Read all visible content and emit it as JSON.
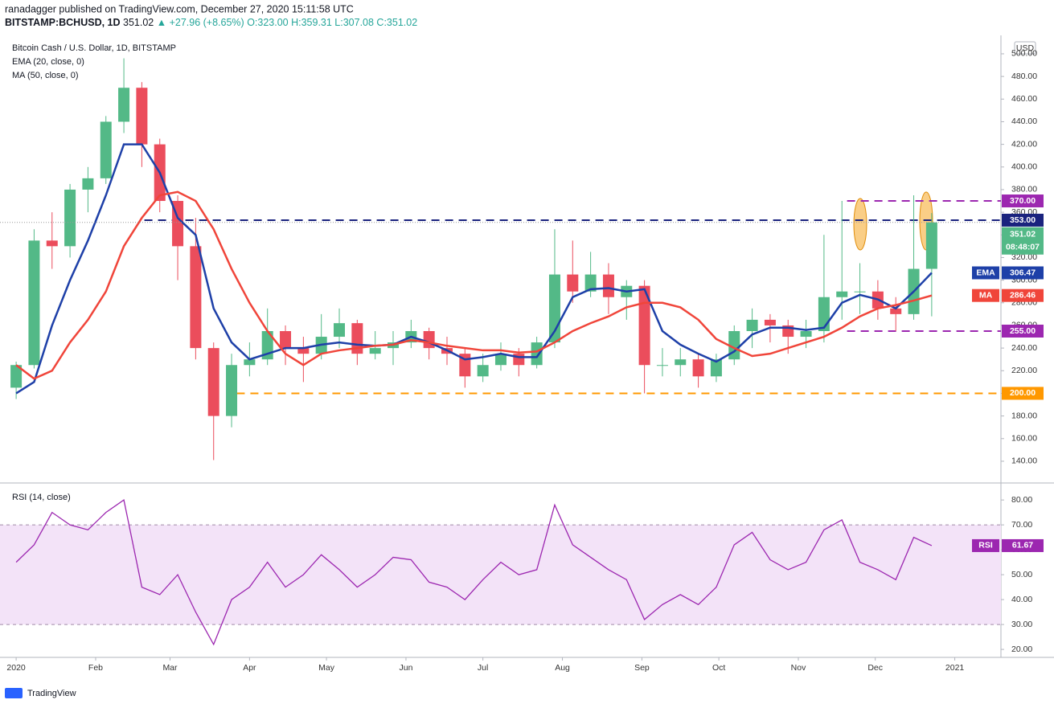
{
  "header": {
    "published": "ranadagger published on TradingView.com, December 27, 2020 15:11:58 UTC",
    "symbol": "BITSTAMP:BCHUSD, 1D",
    "last": "351.02",
    "change": "▲ +27.96 (+8.65%)",
    "ohlc": "O:323.00 H:359.31 L:307.08 C:351.02"
  },
  "footer": {
    "brand": "TradingView"
  },
  "chart_data": [
    {
      "type": "candlestick",
      "title": "Bitcoin Cash / U.S. Dollar, 1D, BITSTAMP",
      "axis_unit": "USD",
      "countdown": "08:48:07",
      "up_color": "#53b987",
      "down_color": "#eb4d5c",
      "x": [
        0,
        7,
        14,
        21,
        28,
        35,
        42,
        49,
        56,
        63,
        70,
        77,
        84,
        91,
        98,
        105,
        112,
        119,
        126,
        133,
        140,
        147,
        154,
        161,
        168,
        175,
        182,
        189,
        196,
        203,
        210,
        217,
        224,
        231,
        238,
        245,
        252,
        259,
        266,
        273,
        280,
        287,
        294,
        301,
        308,
        315,
        322,
        329,
        336,
        343,
        350,
        357
      ],
      "open": [
        205,
        225,
        335,
        330,
        380,
        390,
        440,
        470,
        420,
        370,
        330,
        240,
        180,
        225,
        230,
        255,
        240,
        235,
        250,
        262,
        235,
        240,
        245,
        255,
        240,
        235,
        215,
        225,
        235,
        225,
        245,
        305,
        290,
        305,
        285,
        295,
        225,
        225,
        230,
        215,
        230,
        255,
        265,
        260,
        250,
        255,
        285,
        290,
        290,
        275,
        270,
        310
      ],
      "high": [
        228,
        345,
        360,
        385,
        400,
        445,
        496,
        475,
        425,
        375,
        355,
        245,
        235,
        245,
        275,
        260,
        250,
        270,
        275,
        265,
        255,
        255,
        265,
        258,
        250,
        240,
        235,
        245,
        240,
        250,
        345,
        335,
        325,
        315,
        300,
        300,
        240,
        240,
        235,
        235,
        260,
        275,
        270,
        265,
        265,
        340,
        370,
        315,
        300,
        285,
        375,
        359.31
      ],
      "low": [
        195,
        222,
        310,
        320,
        360,
        385,
        430,
        400,
        360,
        300,
        230,
        141,
        170,
        215,
        225,
        225,
        210,
        230,
        240,
        225,
        230,
        225,
        240,
        230,
        225,
        205,
        210,
        220,
        215,
        222,
        240,
        280,
        285,
        270,
        265,
        200,
        215,
        215,
        205,
        210,
        225,
        240,
        245,
        235,
        240,
        245,
        265,
        270,
        265,
        255,
        265,
        268
      ],
      "close": [
        225,
        335,
        330,
        380,
        390,
        440,
        470,
        420,
        370,
        330,
        240,
        180,
        225,
        230,
        255,
        240,
        235,
        250,
        262,
        235,
        240,
        245,
        255,
        240,
        235,
        215,
        225,
        235,
        225,
        245,
        305,
        290,
        305,
        285,
        295,
        225,
        225,
        230,
        215,
        230,
        255,
        265,
        260,
        250,
        255,
        285,
        290,
        290,
        275,
        270,
        310,
        351.02
      ],
      "series": [
        {
          "name": "EMA (20, close, 0)",
          "tag": "EMA",
          "color": "#1e40a8",
          "values": [
            200,
            210,
            260,
            300,
            335,
            375,
            420,
            420,
            395,
            355,
            340,
            275,
            245,
            230,
            235,
            240,
            240,
            243,
            245,
            243,
            242,
            243,
            250,
            245,
            238,
            230,
            232,
            235,
            232,
            232,
            255,
            285,
            292,
            293,
            290,
            292,
            255,
            243,
            235,
            228,
            237,
            252,
            258,
            258,
            256,
            258,
            280,
            287,
            283,
            275,
            290,
            306.47
          ]
        },
        {
          "name": "MA (50, close, 0)",
          "tag": "MA",
          "color": "#f0453a",
          "values": [
            225,
            213,
            220,
            245,
            265,
            290,
            330,
            355,
            375,
            378,
            370,
            345,
            310,
            280,
            255,
            235,
            225,
            235,
            238,
            240,
            242,
            243,
            247,
            245,
            242,
            240,
            238,
            238,
            236,
            237,
            245,
            255,
            262,
            268,
            276,
            280,
            280,
            276,
            265,
            248,
            240,
            233,
            235,
            240,
            245,
            250,
            258,
            268,
            275,
            278,
            282,
            286.46
          ]
        }
      ],
      "levels": [
        {
          "value": 370,
          "label": "370.00",
          "color": "#9c27b0",
          "start": 324
        },
        {
          "value": 353,
          "label": "353.00",
          "color": "#1a237e",
          "start": 50
        },
        {
          "value": 255,
          "label": "255.00",
          "color": "#9c27b0",
          "start": 324
        },
        {
          "value": 200,
          "label": "200.00",
          "color": "#ff9800",
          "start": 86
        }
      ],
      "xlim": [
        -6.3,
        384
      ],
      "ylim": [
        121.5,
        516.3
      ],
      "xticks": [
        {
          "value": 0,
          "label": "2020"
        },
        {
          "value": 31,
          "label": "Feb"
        },
        {
          "value": 60,
          "label": "Mar"
        },
        {
          "value": 91,
          "label": "Apr"
        },
        {
          "value": 121,
          "label": "May"
        },
        {
          "value": 152,
          "label": "Jun"
        },
        {
          "value": 182,
          "label": "Jul"
        },
        {
          "value": 213,
          "label": "Aug"
        },
        {
          "value": 244,
          "label": "Sep"
        },
        {
          "value": 274,
          "label": "Oct"
        },
        {
          "value": 305,
          "label": "Nov"
        },
        {
          "value": 335,
          "label": "Dec"
        },
        {
          "value": 366,
          "label": "2021"
        }
      ],
      "yticks": [
        {
          "value": 140,
          "label": "140.00"
        },
        {
          "value": 160,
          "label": "160.00"
        },
        {
          "value": 180,
          "label": "180.00"
        },
        {
          "value": 200,
          "label": "200.00"
        },
        {
          "value": 220,
          "label": "220.00"
        },
        {
          "value": 240,
          "label": "240.00"
        },
        {
          "value": 260,
          "label": "260.00"
        },
        {
          "value": 280,
          "label": "280.00"
        },
        {
          "value": 300,
          "label": "300.00"
        },
        {
          "value": 320,
          "label": "320.00"
        },
        {
          "value": 340,
          "label": "340.00"
        },
        {
          "value": 360,
          "label": "360.00"
        },
        {
          "value": 380,
          "label": "380.00"
        },
        {
          "value": 400,
          "label": "400.00"
        },
        {
          "value": 420,
          "label": "420.00"
        },
        {
          "value": 440,
          "label": "440.00"
        },
        {
          "value": 460,
          "label": "460.00"
        },
        {
          "value": 480,
          "label": "480.00"
        },
        {
          "value": 500,
          "label": "500.00"
        }
      ]
    },
    {
      "type": "line",
      "title": "RSI (14, close)",
      "x": [
        0,
        7,
        14,
        21,
        28,
        35,
        42,
        49,
        56,
        63,
        70,
        77,
        84,
        91,
        98,
        105,
        112,
        119,
        126,
        133,
        140,
        147,
        154,
        161,
        168,
        175,
        182,
        189,
        196,
        203,
        210,
        217,
        224,
        231,
        238,
        245,
        252,
        259,
        266,
        273,
        280,
        287,
        294,
        301,
        308,
        315,
        322,
        329,
        336,
        343,
        350,
        357
      ],
      "series": [
        {
          "name": "RSI (14, close)",
          "tag": "RSI",
          "color": "#9c27b0",
          "values": [
            55,
            62,
            75,
            70,
            68,
            75,
            80,
            45,
            42,
            50,
            35,
            22,
            40,
            45,
            55,
            45,
            50,
            58,
            52,
            45,
            50,
            57,
            56,
            47,
            45,
            40,
            48,
            55,
            50,
            52,
            78,
            62,
            57,
            52,
            48,
            32,
            38,
            42,
            38,
            45,
            62,
            67,
            56,
            52,
            55,
            68,
            72,
            55,
            52,
            48,
            65,
            61.67
          ]
        }
      ],
      "band": [
        30,
        70
      ],
      "band_color": "#f3e3f8",
      "xlim": [
        -6.3,
        384
      ],
      "ylim": [
        16.8,
        86.5
      ],
      "yticks": [
        {
          "value": 20,
          "label": "20.00"
        },
        {
          "value": 30,
          "label": "30.00"
        },
        {
          "value": 40,
          "label": "40.00"
        },
        {
          "value": 50,
          "label": "50.00"
        },
        {
          "value": 60,
          "label": "60.00"
        },
        {
          "value": 70,
          "label": "70.00"
        },
        {
          "value": 80,
          "label": "80.00"
        }
      ]
    }
  ]
}
